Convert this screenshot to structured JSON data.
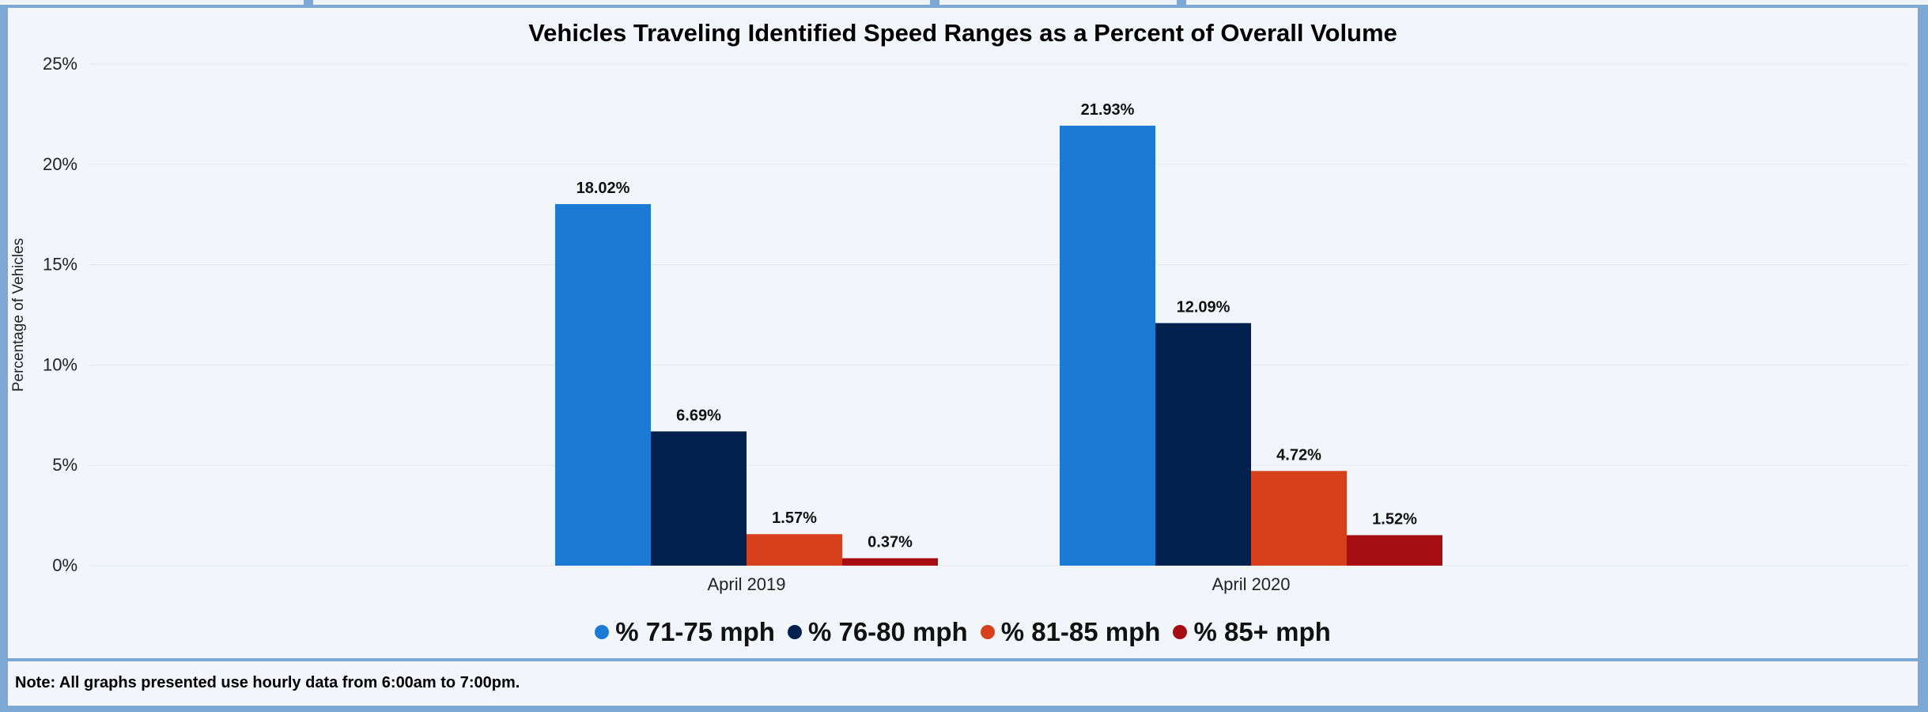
{
  "colors": {
    "background": "#7ba9d4",
    "panel": "#f2f6fa",
    "grid": "#e3e8ee",
    "series": [
      "#1a7ad4",
      "#02214e",
      "#d7401c",
      "#a50d12"
    ]
  },
  "chart_data": {
    "type": "bar",
    "title": "Vehicles Traveling Identified Speed Ranges as a Percent of Overall Volume",
    "xlabel": "",
    "ylabel": "Percentage of Vehicles",
    "categories": [
      "April 2019",
      "April 2020"
    ],
    "series": [
      {
        "name": "% 71-75 mph",
        "values": [
          18.02,
          21.93
        ],
        "labels": [
          "18.02%",
          "21.93%"
        ]
      },
      {
        "name": "% 76-80 mph",
        "values": [
          6.69,
          12.09
        ],
        "labels": [
          "6.69%",
          "12.09%"
        ]
      },
      {
        "name": "% 81-85 mph",
        "values": [
          1.57,
          4.72
        ],
        "labels": [
          "1.57%",
          "4.72%"
        ]
      },
      {
        "name": "% 85+ mph",
        "values": [
          0.37,
          1.52
        ],
        "labels": [
          "0.37%",
          "1.52%"
        ]
      }
    ],
    "ylim": [
      0,
      25
    ],
    "yticks": [
      0,
      5,
      10,
      15,
      20,
      25
    ],
    "ytick_labels": [
      "0%",
      "5%",
      "10%",
      "15%",
      "20%",
      "25%"
    ],
    "grid": true,
    "legend_position": "bottom"
  },
  "note": "Note: All graphs presented use hourly data from 6:00am to 7:00pm."
}
